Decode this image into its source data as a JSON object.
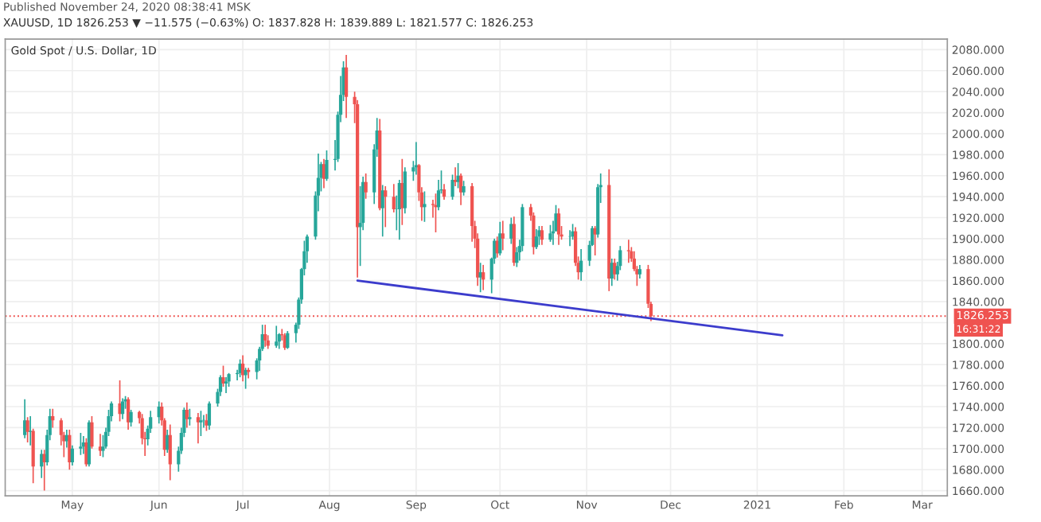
{
  "chart_data": {
    "type": "candlestick",
    "title": "Gold Spot / U.S. Dollar, 1D",
    "subtitle": "XAUUSD, 1D 1826.253 ▼ −11.575 (−0.63%) O: 1837.828 H: 1839.889 L: 1821.577 C: 1826.253",
    "annotations": [
      "Published November 24, 2020 08:38:41 MSK",
      "16:31:22"
    ],
    "x": [
      "2020-04-14",
      "2020-04-15",
      "2020-04-16",
      "2020-04-17",
      "2020-04-20",
      "2020-04-21",
      "2020-04-22",
      "2020-04-23",
      "2020-04-24",
      "2020-04-27",
      "2020-04-28",
      "2020-04-29",
      "2020-04-30",
      "2020-05-01",
      "2020-05-04",
      "2020-05-05",
      "2020-05-06",
      "2020-05-07",
      "2020-05-08",
      "2020-05-11",
      "2020-05-12",
      "2020-05-13",
      "2020-05-14",
      "2020-05-15",
      "2020-05-18",
      "2020-05-19",
      "2020-05-20",
      "2020-05-21",
      "2020-05-22",
      "2020-05-25",
      "2020-05-26",
      "2020-05-27",
      "2020-05-28",
      "2020-05-29",
      "2020-06-01",
      "2020-06-02",
      "2020-06-03",
      "2020-06-04",
      "2020-06-05",
      "2020-06-08",
      "2020-06-09",
      "2020-06-10",
      "2020-06-11",
      "2020-06-12",
      "2020-06-15",
      "2020-06-16",
      "2020-06-17",
      "2020-06-18",
      "2020-06-19",
      "2020-06-22",
      "2020-06-23",
      "2020-06-24",
      "2020-06-25",
      "2020-06-26",
      "2020-06-29",
      "2020-06-30",
      "2020-07-01",
      "2020-07-02",
      "2020-07-03",
      "2020-07-06",
      "2020-07-07",
      "2020-07-08",
      "2020-07-09",
      "2020-07-10",
      "2020-07-13",
      "2020-07-14",
      "2020-07-15",
      "2020-07-16",
      "2020-07-17",
      "2020-07-20",
      "2020-07-21",
      "2020-07-22",
      "2020-07-23",
      "2020-07-24",
      "2020-07-27",
      "2020-07-28",
      "2020-07-29",
      "2020-07-30",
      "2020-07-31",
      "2020-08-03",
      "2020-08-04",
      "2020-08-05",
      "2020-08-06",
      "2020-08-07",
      "2020-08-10",
      "2020-08-11",
      "2020-08-12",
      "2020-08-13",
      "2020-08-14",
      "2020-08-17",
      "2020-08-18",
      "2020-08-19",
      "2020-08-20",
      "2020-08-21",
      "2020-08-24",
      "2020-08-25",
      "2020-08-26",
      "2020-08-27",
      "2020-08-28",
      "2020-08-31",
      "2020-09-01",
      "2020-09-02",
      "2020-09-03",
      "2020-09-04",
      "2020-09-07",
      "2020-09-08",
      "2020-09-09",
      "2020-09-10",
      "2020-09-11",
      "2020-09-14",
      "2020-09-15",
      "2020-09-16",
      "2020-09-17",
      "2020-09-18",
      "2020-09-21",
      "2020-09-22",
      "2020-09-23",
      "2020-09-24",
      "2020-09-25",
      "2020-09-28",
      "2020-09-29",
      "2020-09-30",
      "2020-10-01",
      "2020-10-02",
      "2020-10-05",
      "2020-10-06",
      "2020-10-07",
      "2020-10-08",
      "2020-10-09",
      "2020-10-12",
      "2020-10-13",
      "2020-10-14",
      "2020-10-15",
      "2020-10-16",
      "2020-10-19",
      "2020-10-20",
      "2020-10-21",
      "2020-10-22",
      "2020-10-23",
      "2020-10-26",
      "2020-10-27",
      "2020-10-28",
      "2020-10-29",
      "2020-10-30",
      "2020-11-02",
      "2020-11-03",
      "2020-11-04",
      "2020-11-05",
      "2020-11-06",
      "2020-11-09",
      "2020-11-10",
      "2020-11-11",
      "2020-11-12",
      "2020-11-13",
      "2020-11-16",
      "2020-11-17",
      "2020-11-18",
      "2020-11-19",
      "2020-11-20",
      "2020-11-23",
      "2020-11-24"
    ],
    "ohlc": [
      [
        1713,
        1747,
        1710,
        1727
      ],
      [
        1727,
        1730,
        1706,
        1716
      ],
      [
        1716,
        1731,
        1703,
        1717
      ],
      [
        1717,
        1719,
        1667,
        1683
      ],
      [
        1683,
        1699,
        1672,
        1695
      ],
      [
        1695,
        1699,
        1660,
        1687
      ],
      [
        1687,
        1718,
        1684,
        1713
      ],
      [
        1713,
        1738,
        1708,
        1731
      ],
      [
        1731,
        1738,
        1720,
        1727
      ],
      [
        1727,
        1729,
        1703,
        1713
      ],
      [
        1713,
        1716,
        1692,
        1707
      ],
      [
        1707,
        1718,
        1701,
        1713
      ],
      [
        1713,
        1718,
        1680,
        1687
      ],
      [
        1687,
        1703,
        1684,
        1700
      ],
      [
        1700,
        1715,
        1694,
        1702
      ],
      [
        1702,
        1712,
        1695,
        1706
      ],
      [
        1706,
        1710,
        1683,
        1685
      ],
      [
        1685,
        1727,
        1683,
        1725
      ],
      [
        1725,
        1731,
        1700,
        1702
      ],
      [
        1702,
        1714,
        1693,
        1698
      ],
      [
        1698,
        1713,
        1692,
        1702
      ],
      [
        1702,
        1720,
        1700,
        1716
      ],
      [
        1716,
        1737,
        1712,
        1731
      ],
      [
        1731,
        1745,
        1726,
        1743
      ],
      [
        1743,
        1765,
        1726,
        1733
      ],
      [
        1733,
        1748,
        1728,
        1745
      ],
      [
        1745,
        1750,
        1738,
        1747
      ],
      [
        1747,
        1749,
        1718,
        1725
      ],
      [
        1725,
        1737,
        1721,
        1735
      ],
      [
        1735,
        1736,
        1724,
        1729
      ],
      [
        1729,
        1733,
        1704,
        1710
      ],
      [
        1710,
        1716,
        1693,
        1709
      ],
      [
        1709,
        1722,
        1703,
        1719
      ],
      [
        1719,
        1736,
        1715,
        1730
      ],
      [
        1730,
        1745,
        1724,
        1740
      ],
      [
        1740,
        1744,
        1722,
        1727
      ],
      [
        1727,
        1729,
        1693,
        1699
      ],
      [
        1699,
        1718,
        1696,
        1713
      ],
      [
        1713,
        1723,
        1670,
        1685
      ],
      [
        1685,
        1702,
        1678,
        1698
      ],
      [
        1698,
        1720,
        1695,
        1715
      ],
      [
        1715,
        1739,
        1711,
        1737
      ],
      [
        1737,
        1744,
        1720,
        1728
      ],
      [
        1728,
        1738,
        1722,
        1730
      ],
      [
        1730,
        1734,
        1705,
        1725
      ],
      [
        1725,
        1736,
        1712,
        1727
      ],
      [
        1727,
        1732,
        1720,
        1727
      ],
      [
        1727,
        1733,
        1717,
        1722
      ],
      [
        1722,
        1745,
        1718,
        1743
      ],
      [
        1743,
        1757,
        1740,
        1754
      ],
      [
        1754,
        1770,
        1750,
        1768
      ],
      [
        1768,
        1779,
        1759,
        1762
      ],
      [
        1762,
        1768,
        1753,
        1764
      ],
      [
        1764,
        1772,
        1759,
        1771
      ],
      [
        1771,
        1775,
        1765,
        1772
      ],
      [
        1772,
        1785,
        1768,
        1781
      ],
      [
        1781,
        1789,
        1764,
        1770
      ],
      [
        1770,
        1777,
        1757,
        1775
      ],
      [
        1775,
        1777,
        1767,
        1773
      ],
      [
        1773,
        1786,
        1766,
        1784
      ],
      [
        1784,
        1797,
        1774,
        1795
      ],
      [
        1795,
        1818,
        1793,
        1809
      ],
      [
        1809,
        1818,
        1797,
        1803
      ],
      [
        1803,
        1808,
        1795,
        1798
      ],
      [
        1798,
        1817,
        1796,
        1802
      ],
      [
        1802,
        1810,
        1795,
        1809
      ],
      [
        1809,
        1814,
        1803,
        1808
      ],
      [
        1808,
        1810,
        1794,
        1796
      ],
      [
        1796,
        1812,
        1795,
        1810
      ],
      [
        1810,
        1820,
        1801,
        1818
      ],
      [
        1818,
        1844,
        1814,
        1842
      ],
      [
        1842,
        1872,
        1838,
        1871
      ],
      [
        1871,
        1898,
        1865,
        1888
      ],
      [
        1888,
        1904,
        1877,
        1902
      ],
      [
        1902,
        1945,
        1899,
        1941
      ],
      [
        1941,
        1981,
        1926,
        1958
      ],
      [
        1958,
        1973,
        1945,
        1971
      ],
      [
        1971,
        1976,
        1948,
        1957
      ],
      [
        1957,
        1984,
        1955,
        1975
      ],
      [
        1975,
        1994,
        1965,
        1976
      ],
      [
        1976,
        2021,
        1973,
        2018
      ],
      [
        2018,
        2055,
        2011,
        2037
      ],
      [
        2037,
        2069,
        2031,
        2063
      ],
      [
        2063,
        2075,
        2015,
        2035
      ],
      [
        2035,
        2040,
        2010,
        2028
      ],
      [
        2028,
        2032,
        1863,
        1911
      ],
      [
        1911,
        1950,
        1874,
        1915
      ],
      [
        1915,
        1959,
        1908,
        1954
      ],
      [
        1954,
        1962,
        1938,
        1944
      ],
      [
        1944,
        1990,
        1933,
        1985
      ],
      [
        1985,
        2015,
        1978,
        2003
      ],
      [
        2003,
        2014,
        1927,
        1929
      ],
      [
        1929,
        1951,
        1902,
        1946
      ],
      [
        1946,
        1950,
        1911,
        1940
      ],
      [
        1940,
        1952,
        1925,
        1928
      ],
      [
        1928,
        1941,
        1908,
        1928
      ],
      [
        1928,
        1956,
        1899,
        1953
      ],
      [
        1953,
        1976,
        1913,
        1929
      ],
      [
        1929,
        1968,
        1924,
        1964
      ],
      [
        1964,
        1974,
        1955,
        1968
      ],
      [
        1968,
        1992,
        1961,
        1970
      ],
      [
        1970,
        1971,
        1936,
        1944
      ],
      [
        1944,
        1949,
        1917,
        1930
      ],
      [
        1930,
        1945,
        1916,
        1933
      ],
      [
        1933,
        1937,
        1920,
        1932
      ],
      [
        1932,
        1943,
        1906,
        1930
      ],
      [
        1930,
        1956,
        1927,
        1946
      ],
      [
        1946,
        1965,
        1943,
        1947
      ],
      [
        1947,
        1952,
        1937,
        1940
      ],
      [
        1940,
        1961,
        1937,
        1956
      ],
      [
        1956,
        1968,
        1950,
        1954
      ],
      [
        1954,
        1972,
        1948,
        1960
      ],
      [
        1960,
        1962,
        1932,
        1944
      ],
      [
        1944,
        1955,
        1941,
        1950
      ],
      [
        1950,
        1953,
        1897,
        1912
      ],
      [
        1912,
        1917,
        1891,
        1900
      ],
      [
        1900,
        1905,
        1855,
        1863
      ],
      [
        1863,
        1877,
        1849,
        1868
      ],
      [
        1868,
        1875,
        1851,
        1861
      ],
      [
        1861,
        1882,
        1848,
        1881
      ],
      [
        1881,
        1900,
        1876,
        1898
      ],
      [
        1898,
        1902,
        1882,
        1886
      ],
      [
        1886,
        1916,
        1884,
        1905
      ],
      [
        1905,
        1917,
        1889,
        1900
      ],
      [
        1900,
        1920,
        1895,
        1914
      ],
      [
        1914,
        1921,
        1874,
        1877
      ],
      [
        1877,
        1892,
        1873,
        1887
      ],
      [
        1887,
        1899,
        1879,
        1893
      ],
      [
        1893,
        1933,
        1888,
        1930
      ],
      [
        1930,
        1933,
        1917,
        1922
      ],
      [
        1922,
        1925,
        1885,
        1892
      ],
      [
        1892,
        1909,
        1890,
        1902
      ],
      [
        1902,
        1912,
        1894,
        1908
      ],
      [
        1908,
        1912,
        1894,
        1899
      ],
      [
        1899,
        1913,
        1897,
        1905
      ],
      [
        1905,
        1917,
        1894,
        1907
      ],
      [
        1907,
        1932,
        1907,
        1924
      ],
      [
        1924,
        1929,
        1894,
        1904
      ],
      [
        1904,
        1912,
        1899,
        1902
      ],
      [
        1902,
        1908,
        1893,
        1902
      ],
      [
        1902,
        1914,
        1899,
        1907
      ],
      [
        1907,
        1911,
        1874,
        1877
      ],
      [
        1877,
        1883,
        1861,
        1868
      ],
      [
        1868,
        1890,
        1860,
        1879
      ],
      [
        1879,
        1898,
        1874,
        1894
      ],
      [
        1894,
        1912,
        1893,
        1910
      ],
      [
        1910,
        1912,
        1884,
        1904
      ],
      [
        1904,
        1952,
        1901,
        1949
      ],
      [
        1949,
        1962,
        1934,
        1951
      ],
      [
        1951,
        1966,
        1850,
        1862
      ],
      [
        1862,
        1881,
        1855,
        1877
      ],
      [
        1877,
        1881,
        1861,
        1866
      ],
      [
        1866,
        1878,
        1860,
        1874
      ],
      [
        1874,
        1893,
        1870,
        1889
      ],
      [
        1889,
        1899,
        1877,
        1888
      ],
      [
        1888,
        1892,
        1878,
        1881
      ],
      [
        1881,
        1888,
        1869,
        1871
      ],
      [
        1871,
        1874,
        1855,
        1866
      ],
      [
        1866,
        1875,
        1862,
        1871
      ],
      [
        1871,
        1875,
        1834,
        1838
      ],
      [
        1837.828,
        1839.889,
        1821.577,
        1826.253
      ]
    ],
    "series": [
      {
        "type": "line",
        "x": [
          "2020-08-11",
          "2021-01-10"
        ],
        "values": [
          1860,
          1808
        ],
        "color": "#3c3ccc"
      }
    ],
    "ref_lines": [
      {
        "axis": "y",
        "value": 1826.253,
        "label": "1826.253",
        "color": "#ef5350",
        "line_style": "dotted"
      }
    ],
    "xlim": [
      "2020-04-07",
      "2021-03-10"
    ],
    "xticks": [
      {
        "value": "2020-05-01",
        "label": "May"
      },
      {
        "value": "2020-06-01",
        "label": "Jun"
      },
      {
        "value": "2020-07-01",
        "label": "Jul"
      },
      {
        "value": "2020-08-01",
        "label": "Aug"
      },
      {
        "value": "2020-09-01",
        "label": "Sep"
      },
      {
        "value": "2020-10-01",
        "label": "Oct"
      },
      {
        "value": "2020-11-01",
        "label": "Nov"
      },
      {
        "value": "2020-12-01",
        "label": "Dec"
      },
      {
        "value": "2021-01-01",
        "label": "2021"
      },
      {
        "value": "2021-02-01",
        "label": "Feb"
      },
      {
        "value": "2021-03-01",
        "label": "Mar"
      }
    ],
    "ylim": [
      1655,
      2090
    ],
    "yticks": [
      {
        "value": 1660,
        "label": "1660.000"
      },
      {
        "value": 1680,
        "label": "1680.000"
      },
      {
        "value": 1700,
        "label": "1700.000"
      },
      {
        "value": 1720,
        "label": "1720.000"
      },
      {
        "value": 1740,
        "label": "1740.000"
      },
      {
        "value": 1760,
        "label": "1760.000"
      },
      {
        "value": 1780,
        "label": "1780.000"
      },
      {
        "value": 1800,
        "label": "1800.000"
      },
      {
        "value": 1820,
        "label": null
      },
      {
        "value": 1840,
        "label": "1840.000"
      },
      {
        "value": 1860,
        "label": "1860.000"
      },
      {
        "value": 1880,
        "label": "1880.000"
      },
      {
        "value": 1900,
        "label": "1900.000"
      },
      {
        "value": 1920,
        "label": "1920.000"
      },
      {
        "value": 1940,
        "label": "1940.000"
      },
      {
        "value": 1960,
        "label": "1960.000"
      },
      {
        "value": 1980,
        "label": "1980.000"
      },
      {
        "value": 2000,
        "label": "2000.000"
      },
      {
        "value": 2020,
        "label": "2020.000"
      },
      {
        "value": 2040,
        "label": "2040.000"
      },
      {
        "value": 2060,
        "label": "2060.000"
      },
      {
        "value": 2080,
        "label": "2080.000"
      }
    ],
    "grid": true
  }
}
